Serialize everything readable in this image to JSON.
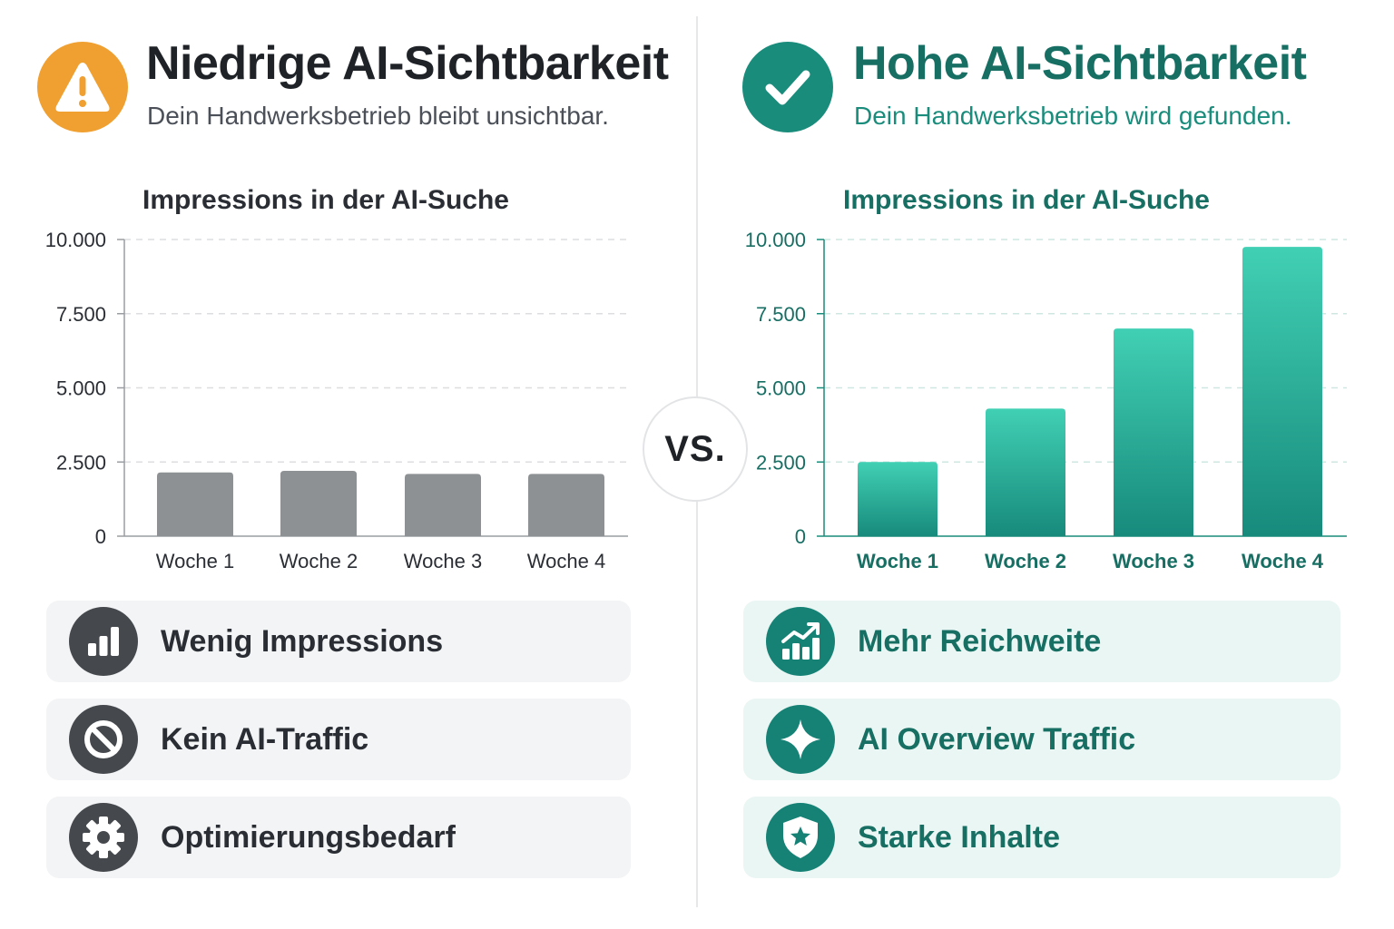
{
  "colors": {
    "warning_orange": "#f0a030",
    "success_teal": "#1a8c7c",
    "bar_gray": "#8e9194",
    "bar_teal_top": "#41d0b4",
    "bar_teal_bottom": "#178a7c"
  },
  "left": {
    "badge_icon": "warning-triangle-icon",
    "title": "Niedrige AI-Sichtbarkeit",
    "subtitle": "Dein Handwerksbetrieb bleibt unsichtbar.",
    "features": [
      {
        "icon": "bar-chart-icon",
        "label": "Wenig Impressions"
      },
      {
        "icon": "prohibited-icon",
        "label": "Kein AI-Traffic"
      },
      {
        "icon": "gear-icon",
        "label": "Optimierungsbedarf"
      }
    ]
  },
  "right": {
    "badge_icon": "checkmark-icon",
    "title": "Hohe AI-Sichtbarkeit",
    "subtitle": "Dein Handwerksbetrieb wird gefunden.",
    "features": [
      {
        "icon": "trend-up-icon",
        "label": "Mehr Reichweite"
      },
      {
        "icon": "sparkle-icon",
        "label": "AI Overview Traffic"
      },
      {
        "icon": "shield-star-icon",
        "label": "Starke Inhalte"
      }
    ]
  },
  "vs_label": "VS.",
  "chart_data": [
    {
      "type": "bar",
      "title": "Impressions in der AI-Suche",
      "categories": [
        "Woche 1",
        "Woche 2",
        "Woche 3",
        "Woche 4"
      ],
      "values": [
        2150,
        2200,
        2100,
        2100
      ],
      "ylim": [
        0,
        10000
      ],
      "yticks": [
        0,
        2500,
        5000,
        7500,
        10000
      ],
      "ytick_labels": [
        "0",
        "2.500",
        "5.000",
        "7.500",
        "10.000"
      ],
      "grid": true,
      "xlabel": "",
      "ylabel": ""
    },
    {
      "type": "bar",
      "title": "Impressions in der AI-Suche",
      "categories": [
        "Woche 1",
        "Woche 2",
        "Woche 3",
        "Woche 4"
      ],
      "values": [
        2500,
        4300,
        7000,
        9750
      ],
      "ylim": [
        0,
        10000
      ],
      "yticks": [
        0,
        2500,
        5000,
        7500,
        10000
      ],
      "ytick_labels": [
        "0",
        "2.500",
        "5.000",
        "7.500",
        "10.000"
      ],
      "grid": true,
      "xlabel": "",
      "ylabel": ""
    }
  ]
}
